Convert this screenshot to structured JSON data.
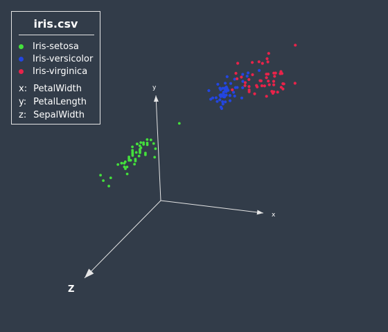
{
  "legend": {
    "title": "iris.csv",
    "entries": [
      {
        "label": "Iris-setosa",
        "color": "#44e03c"
      },
      {
        "label": "Iris-versicolor",
        "color": "#2346e0"
      },
      {
        "label": "Iris-virginica",
        "color": "#e8234a"
      }
    ],
    "axes": [
      {
        "key": "x:",
        "name": "PetalWidth"
      },
      {
        "key": "y:",
        "name": "PetalLength"
      },
      {
        "key": "z:",
        "name": "SepalWidth"
      }
    ]
  },
  "chart_data": {
    "type": "scatter",
    "projection": "3d",
    "axes": {
      "x": "x",
      "y": "y",
      "z": "Z"
    },
    "series": [
      {
        "name": "Iris-setosa",
        "color": "#44e03c",
        "x": [
          0.2,
          0.2,
          0.2,
          0.2,
          0.2,
          0.4,
          0.3,
          0.2,
          0.2,
          0.1,
          0.2,
          0.2,
          0.1,
          0.1,
          0.2,
          0.4,
          0.4,
          0.3,
          0.3,
          0.3,
          0.2,
          0.4,
          0.2,
          0.5,
          0.2,
          0.2,
          0.4,
          0.2,
          0.2,
          0.2,
          0.2,
          0.4,
          0.1,
          0.2,
          0.1,
          0.2,
          0.2,
          0.1,
          0.2,
          0.2,
          0.3,
          0.3,
          0.2,
          0.6,
          0.4,
          0.3,
          0.2,
          0.2,
          0.2,
          0.2
        ],
        "y": [
          1.4,
          1.4,
          1.3,
          1.5,
          1.4,
          1.7,
          1.4,
          1.5,
          1.4,
          1.5,
          1.5,
          1.6,
          1.4,
          1.1,
          1.2,
          1.5,
          1.3,
          1.4,
          1.7,
          1.5,
          1.7,
          1.5,
          1.0,
          1.7,
          1.9,
          1.6,
          1.6,
          1.5,
          1.4,
          1.6,
          1.6,
          1.5,
          1.5,
          1.4,
          1.5,
          1.2,
          1.3,
          1.5,
          1.3,
          1.5,
          1.3,
          1.3,
          1.3,
          1.6,
          1.9,
          1.4,
          1.6,
          1.4,
          1.5,
          1.4
        ],
        "z": [
          3.5,
          3.0,
          3.2,
          3.1,
          3.6,
          3.9,
          3.4,
          3.4,
          2.9,
          3.1,
          3.7,
          3.4,
          3.0,
          3.0,
          4.0,
          4.4,
          3.9,
          3.5,
          3.8,
          3.8,
          3.4,
          3.7,
          3.6,
          3.3,
          3.4,
          3.0,
          3.4,
          3.5,
          3.4,
          3.2,
          3.1,
          3.4,
          4.1,
          4.2,
          3.1,
          3.2,
          3.5,
          3.1,
          3.0,
          3.4,
          3.5,
          2.3,
          3.2,
          3.5,
          3.8,
          3.0,
          3.8,
          3.2,
          3.7,
          3.3
        ]
      },
      {
        "name": "Iris-versicolor",
        "color": "#2346e0",
        "x": [
          1.4,
          1.5,
          1.5,
          1.3,
          1.5,
          1.3,
          1.6,
          1.0,
          1.3,
          1.4,
          1.0,
          1.5,
          1.0,
          1.4,
          1.3,
          1.4,
          1.5,
          1.0,
          1.5,
          1.1,
          1.8,
          1.3,
          1.5,
          1.2,
          1.3,
          1.4,
          1.4,
          1.7,
          1.5,
          1.0,
          1.1,
          1.0,
          1.2,
          1.6,
          1.5,
          1.6,
          1.5,
          1.3,
          1.3,
          1.3,
          1.2,
          1.4,
          1.2,
          1.0,
          1.3,
          1.2,
          1.3,
          1.3,
          1.1,
          1.3
        ],
        "y": [
          4.7,
          4.5,
          4.9,
          4.0,
          4.6,
          4.5,
          4.7,
          3.3,
          4.6,
          3.9,
          3.5,
          4.2,
          4.0,
          4.7,
          3.6,
          4.4,
          4.5,
          4.1,
          4.5,
          3.9,
          4.8,
          4.0,
          4.9,
          4.7,
          4.3,
          4.4,
          4.8,
          5.0,
          4.5,
          3.5,
          3.8,
          3.7,
          3.9,
          5.1,
          4.5,
          4.5,
          4.7,
          4.4,
          4.1,
          4.0,
          4.4,
          4.6,
          4.0,
          3.3,
          4.2,
          4.2,
          4.2,
          4.3,
          3.0,
          4.1
        ],
        "z": [
          3.2,
          3.2,
          3.1,
          2.3,
          2.8,
          2.8,
          3.3,
          2.4,
          2.9,
          2.7,
          2.0,
          3.0,
          2.2,
          2.9,
          2.9,
          3.1,
          3.0,
          2.7,
          2.2,
          2.5,
          3.2,
          2.8,
          2.5,
          2.8,
          2.9,
          3.0,
          2.8,
          3.0,
          2.9,
          2.6,
          2.4,
          2.4,
          2.7,
          2.7,
          3.0,
          3.4,
          3.1,
          2.3,
          3.0,
          2.5,
          2.6,
          3.0,
          2.6,
          2.3,
          2.7,
          3.0,
          2.9,
          2.9,
          2.5,
          2.8
        ]
      },
      {
        "name": "Iris-virginica",
        "color": "#e8234a",
        "x": [
          2.5,
          1.9,
          2.1,
          1.8,
          2.2,
          2.1,
          1.7,
          1.8,
          1.8,
          2.5,
          2.0,
          1.9,
          2.1,
          2.0,
          2.4,
          2.3,
          1.8,
          2.2,
          2.3,
          1.5,
          2.3,
          2.0,
          2.0,
          1.8,
          2.1,
          1.8,
          1.8,
          1.8,
          2.1,
          1.6,
          1.9,
          2.0,
          2.2,
          1.5,
          1.4,
          2.3,
          2.4,
          1.8,
          1.8,
          2.1,
          2.4,
          2.3,
          1.9,
          2.3,
          2.5,
          2.3,
          1.9,
          2.0,
          2.3,
          1.8
        ],
        "y": [
          6.0,
          5.1,
          5.9,
          5.6,
          5.8,
          6.6,
          4.5,
          6.3,
          5.8,
          6.1,
          5.1,
          5.3,
          5.5,
          5.0,
          5.1,
          5.3,
          5.5,
          6.7,
          6.9,
          5.0,
          5.7,
          4.9,
          6.7,
          4.9,
          5.7,
          6.0,
          4.8,
          4.9,
          5.6,
          5.8,
          6.1,
          6.4,
          5.6,
          5.1,
          5.6,
          6.1,
          5.6,
          5.5,
          4.8,
          5.4,
          5.6,
          5.1,
          5.1,
          5.9,
          5.7,
          5.2,
          5.0,
          5.2,
          5.4,
          5.1
        ],
        "z": [
          3.3,
          2.7,
          3.0,
          2.9,
          3.0,
          3.0,
          2.5,
          2.9,
          2.5,
          3.6,
          3.2,
          2.7,
          3.0,
          2.5,
          2.8,
          3.2,
          3.0,
          3.8,
          2.6,
          2.2,
          3.2,
          2.8,
          2.8,
          2.7,
          3.3,
          3.2,
          2.8,
          3.0,
          2.8,
          3.0,
          2.8,
          3.8,
          2.8,
          2.8,
          2.6,
          3.0,
          3.4,
          3.1,
          3.0,
          3.1,
          3.1,
          3.1,
          2.7,
          3.2,
          3.3,
          3.0,
          2.5,
          3.0,
          3.4,
          3.0
        ]
      }
    ]
  }
}
